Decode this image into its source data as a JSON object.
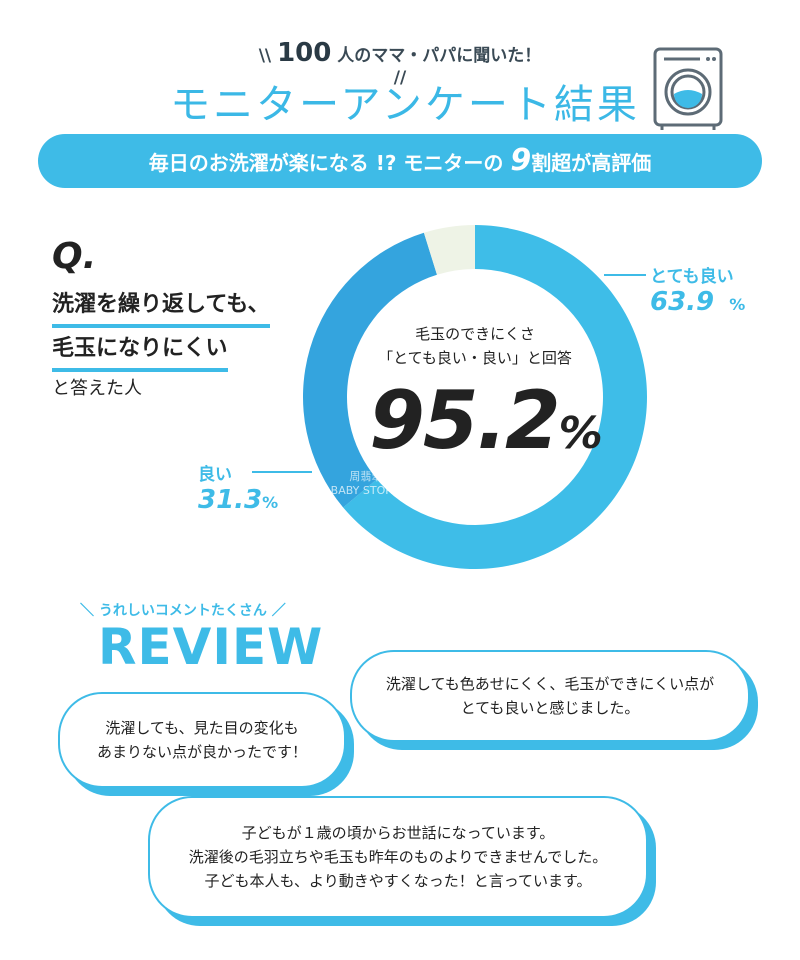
{
  "header": {
    "kicker_number": "100",
    "kicker_text": "人のママ・パパに聞いた！",
    "title": "モニターアンケート結果",
    "banner_pre": "毎日のお洗濯が楽になる !? モニターの",
    "banner_num": "9",
    "banner_post": "割超が高評価",
    "icon": "washing-machine-icon"
  },
  "question": {
    "q": "Q.",
    "line1": "洗濯を繰り返しても、",
    "line2": "毛玉になりにくい",
    "line3": "と答えた人"
  },
  "chart_data": {
    "type": "pie",
    "donut": true,
    "categories": [
      "とても良い",
      "良い",
      ""
    ],
    "values": [
      63.9,
      31.3,
      4.8
    ],
    "colors": [
      "#3ebde8",
      "#34a4de",
      "#eef3e6"
    ],
    "labels": [
      {
        "name": "とても良い",
        "value": "63.9",
        "unit": "%"
      },
      {
        "name": "良い",
        "value": "31.3",
        "unit": "%"
      }
    ],
    "center_caption1": "毛玉のできにくさ",
    "center_caption2": "「とても良い・良い」と回答",
    "center_value": "95.2",
    "center_unit": "%"
  },
  "watermark": {
    "line1": "周翡翠@ADXPARTY",
    "line2": "BABY STORE 日本代购店™"
  },
  "review": {
    "subtitle": "＼ うれしいコメントたくさん ／",
    "title": "REVIEW",
    "comments": [
      {
        "lines": [
          "洗濯しても色あせにくく、毛玉ができにくい点が",
          "とても良いと感じました。"
        ]
      },
      {
        "lines": [
          "洗濯しても、見た目の変化も",
          "あまりない点が良かったです！"
        ]
      },
      {
        "lines": [
          "子どもが１歳の頃からお世話になっています。",
          "洗濯後の毛羽立ちや毛玉も昨年のものよりできませんでした。",
          "子ども本人も、より動きやすくなった！と言っています。"
        ]
      }
    ]
  }
}
